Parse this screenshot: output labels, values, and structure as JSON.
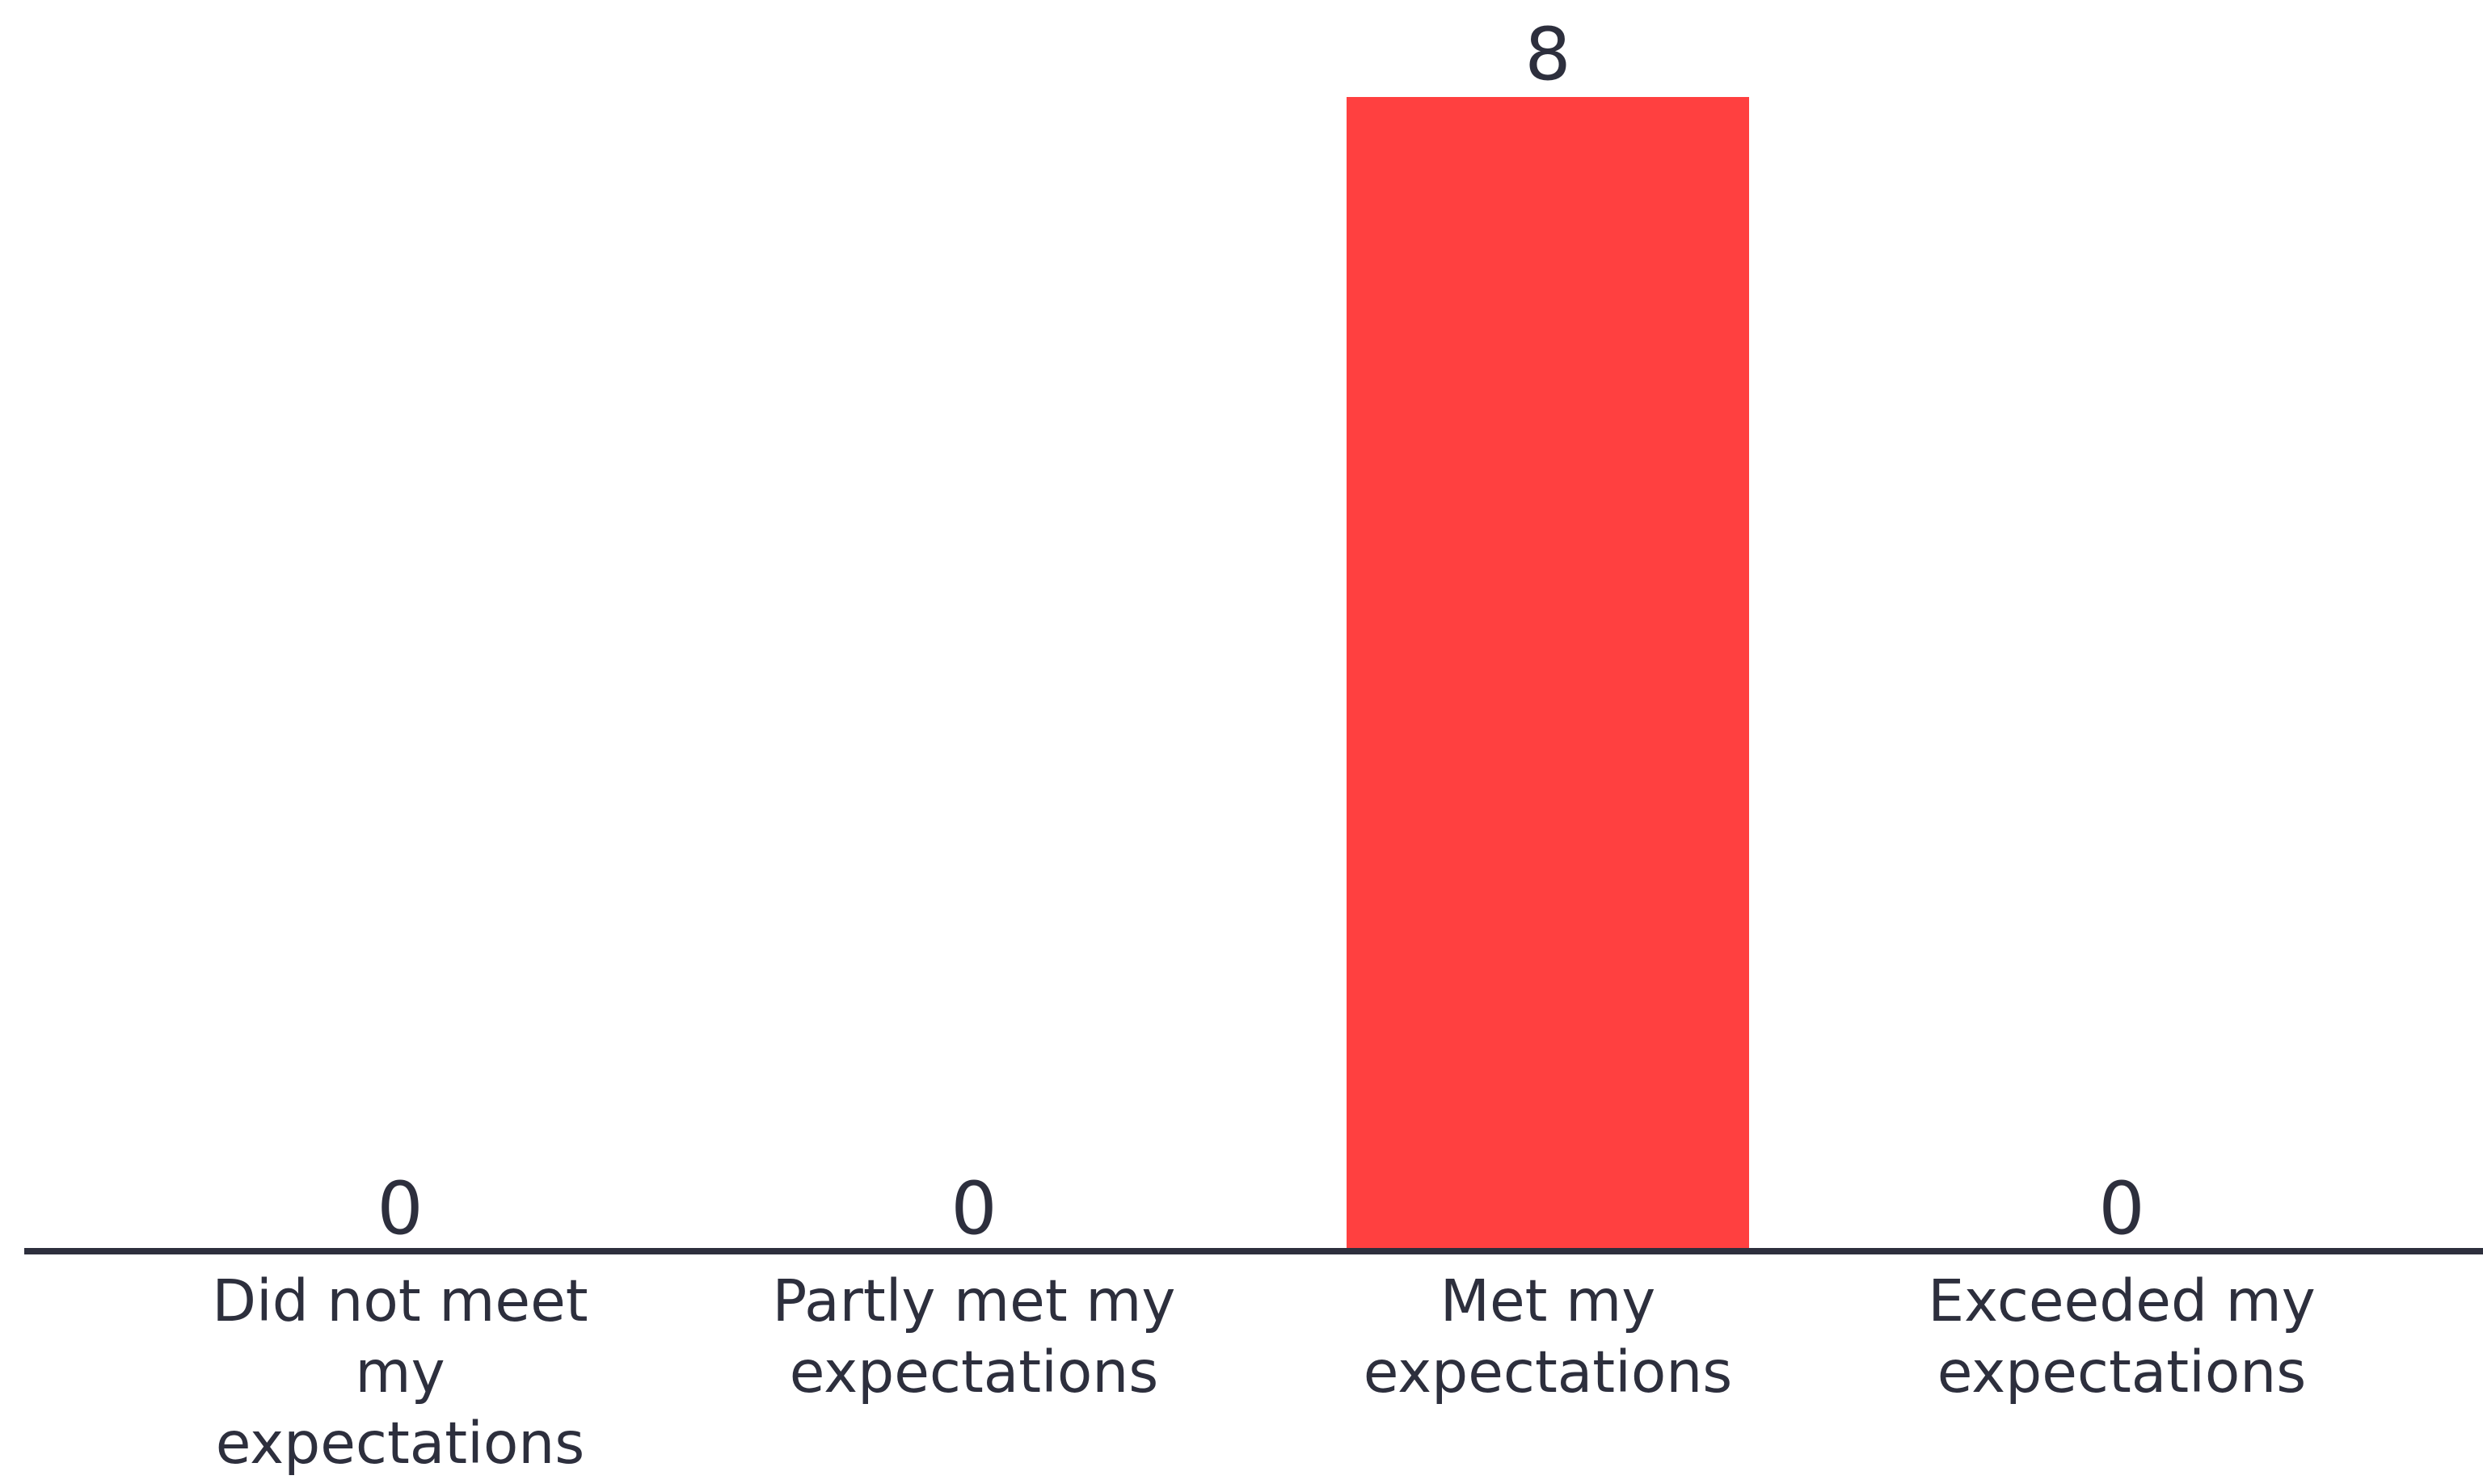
{
  "chart_data": {
    "type": "bar",
    "categories": [
      "Did not meet my expectations",
      "Partly met my expectations",
      "Met my expectations",
      "Exceeded my expectations"
    ],
    "category_lines": [
      [
        "Did not meet",
        "my",
        "expectations"
      ],
      [
        "Partly met my",
        "expectations"
      ],
      [
        "Met my",
        "expectations"
      ],
      [
        "Exceeded my",
        "expectations"
      ]
    ],
    "values": [
      0,
      0,
      8,
      0
    ],
    "data_labels": [
      "0",
      "0",
      "8",
      "0"
    ],
    "ylim": [
      0,
      8
    ],
    "grid": false,
    "colors": {
      "bar": "#ff4040",
      "axis": "#2d2f3d",
      "text": "#2d2f3d"
    }
  }
}
